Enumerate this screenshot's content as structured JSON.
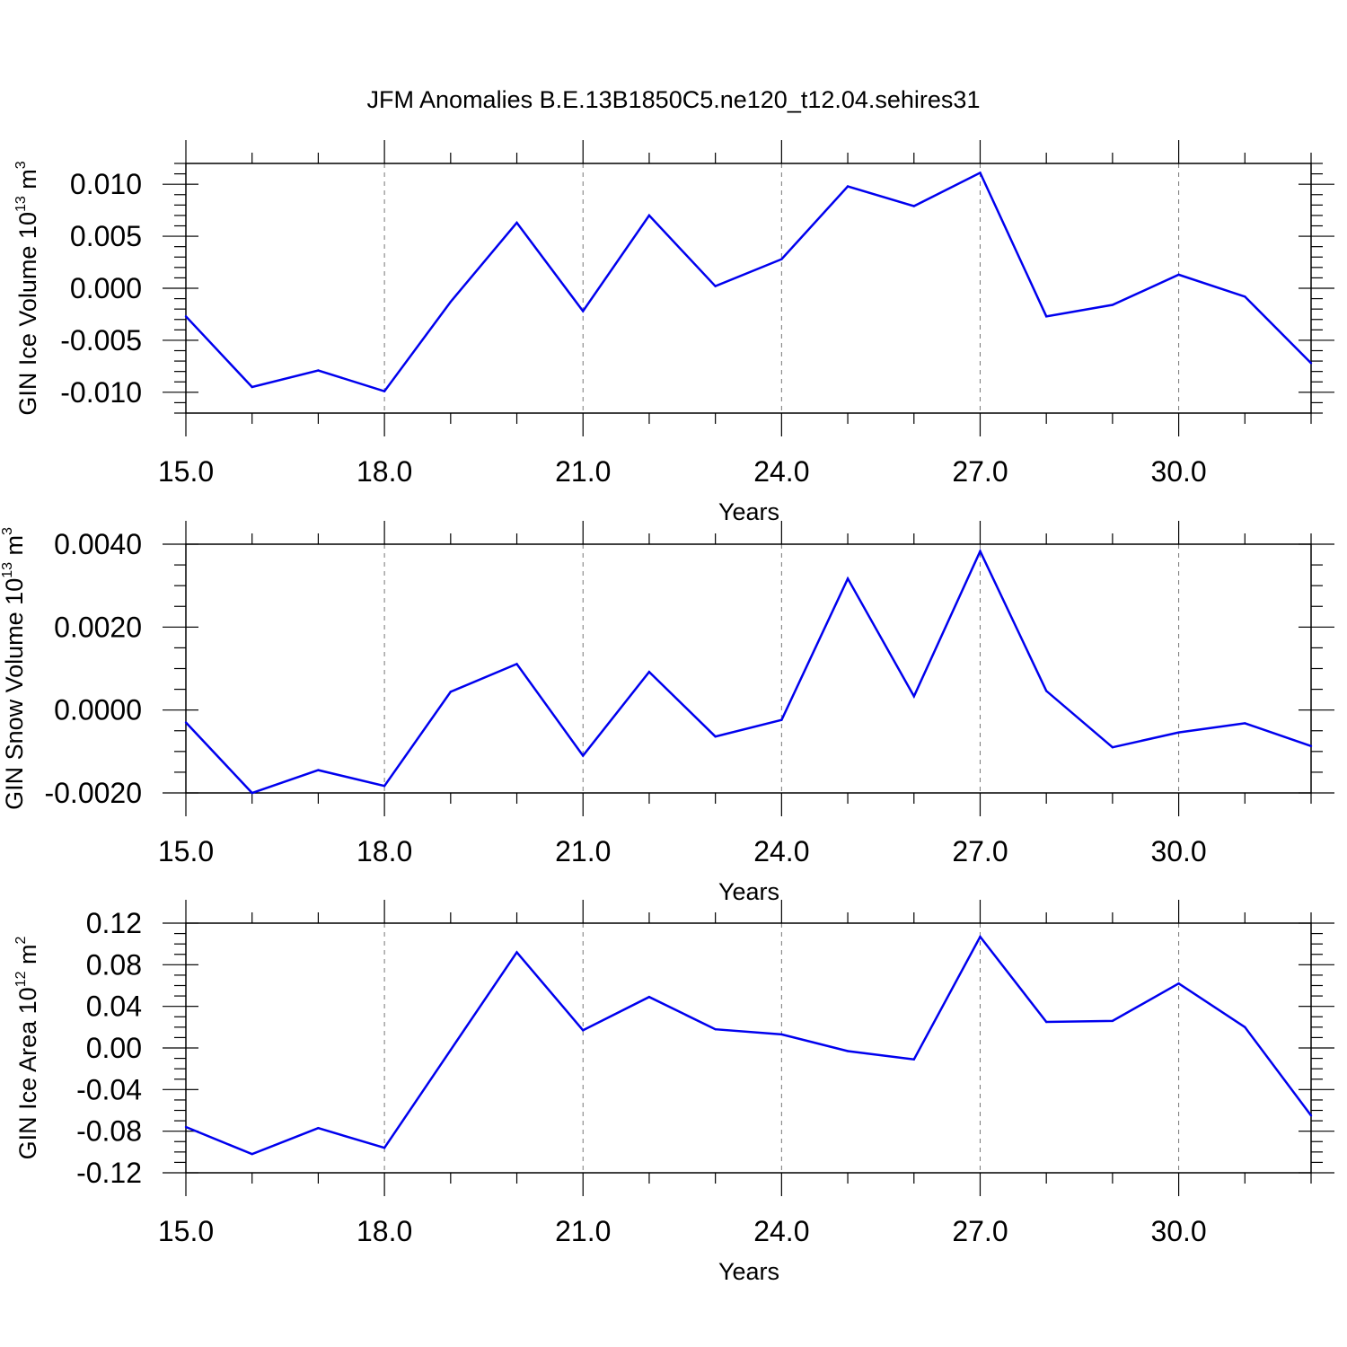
{
  "title": "JFM Anomalies B.E.13B1850C5.ne120_t12.04.sehires31",
  "colors": {
    "line": "#0000ee",
    "axis": "#000000",
    "grid": "#777777"
  },
  "chart_data": [
    {
      "type": "line",
      "name": "ice-volume",
      "xlabel": "Years",
      "ylabel": {
        "text": "GIN Ice Volume 10",
        "exp": "13",
        "unit": " m",
        "unit_exp": "3"
      },
      "xlim": [
        15,
        32
      ],
      "ylim": [
        -0.012,
        0.012
      ],
      "xticks": [
        15,
        18,
        21,
        24,
        27,
        30
      ],
      "xtick_labels": [
        "15.0",
        "18.0",
        "21.0",
        "24.0",
        "27.0",
        "30.0"
      ],
      "yticks": [
        -0.01,
        -0.005,
        0,
        0.005,
        0.01
      ],
      "ytick_labels": [
        "-0.010",
        "-0.005",
        "0.000",
        "0.005",
        "0.010"
      ],
      "yminor": 0.001,
      "x": [
        15,
        16,
        17,
        18,
        19,
        20,
        21,
        22,
        23,
        24,
        25,
        26,
        27,
        28,
        29,
        30,
        31,
        32
      ],
      "values": [
        -0.0027,
        -0.0095,
        -0.0079,
        -0.0099,
        -0.0013,
        0.0063,
        -0.0022,
        0.007,
        0.0002,
        0.0028,
        0.0098,
        0.0079,
        0.0111,
        -0.0027,
        -0.0016,
        0.0013,
        -0.0008,
        -0.0072
      ]
    },
    {
      "type": "line",
      "name": "snow-volume",
      "xlabel": "Years",
      "ylabel": {
        "text": "GIN Snow Volume 10",
        "exp": "13",
        "unit": " m",
        "unit_exp": "3"
      },
      "xlim": [
        15,
        32
      ],
      "ylim": [
        -0.002,
        0.004
      ],
      "xticks": [
        15,
        18,
        21,
        24,
        27,
        30
      ],
      "xtick_labels": [
        "15.0",
        "18.0",
        "21.0",
        "24.0",
        "27.0",
        "30.0"
      ],
      "yticks": [
        -0.002,
        0,
        0.002,
        0.004
      ],
      "ytick_labels": [
        "-0.0020",
        "0.0000",
        "0.0020",
        "0.0040"
      ],
      "yminor": 0.0005,
      "x": [
        15,
        16,
        17,
        18,
        19,
        20,
        21,
        22,
        23,
        24,
        25,
        26,
        27,
        28,
        29,
        30,
        31,
        32
      ],
      "values": [
        -0.0003,
        -0.002,
        -0.00145,
        -0.00183,
        0.00044,
        0.00111,
        -0.0011,
        0.00092,
        -0.00064,
        -0.00024,
        0.00317,
        0.00033,
        0.00383,
        0.00046,
        -0.0009,
        -0.00054,
        -0.00032,
        -0.00087
      ]
    },
    {
      "type": "line",
      "name": "ice-area",
      "xlabel": "Years",
      "ylabel": {
        "text": "GIN Ice Area 10",
        "exp": "12",
        "unit": " m",
        "unit_exp": "2"
      },
      "xlim": [
        15,
        32
      ],
      "ylim": [
        -0.12,
        0.12
      ],
      "xticks": [
        15,
        18,
        21,
        24,
        27,
        30
      ],
      "xtick_labels": [
        "15.0",
        "18.0",
        "21.0",
        "24.0",
        "27.0",
        "30.0"
      ],
      "yticks": [
        -0.12,
        -0.08,
        -0.04,
        0,
        0.04,
        0.08,
        0.12
      ],
      "ytick_labels": [
        "-0.12",
        "-0.08",
        "-0.04",
        "0.00",
        "0.04",
        "0.08",
        "0.12"
      ],
      "yminor": 0.01,
      "x": [
        15,
        16,
        17,
        18,
        19,
        20,
        21,
        22,
        23,
        24,
        25,
        26,
        27,
        28,
        29,
        30,
        31,
        32
      ],
      "values": [
        -0.076,
        -0.102,
        -0.077,
        -0.096,
        -0.002,
        0.092,
        0.017,
        0.049,
        0.018,
        0.013,
        -0.003,
        -0.011,
        0.107,
        0.025,
        0.026,
        0.062,
        0.02,
        -0.065
      ]
    }
  ]
}
